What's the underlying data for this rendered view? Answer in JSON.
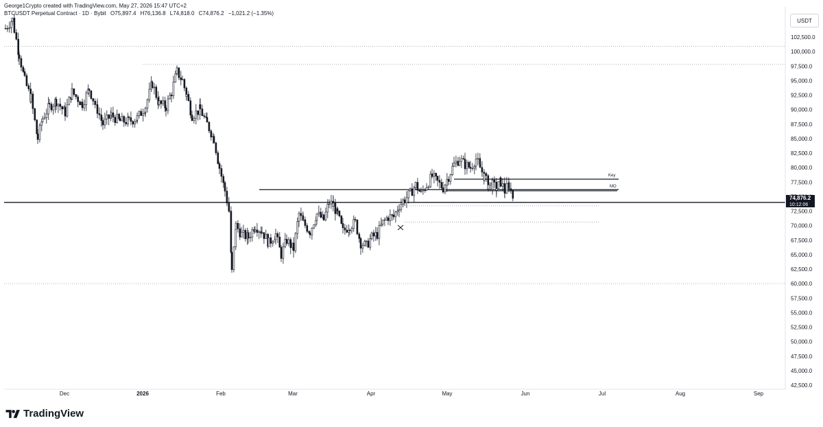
{
  "header": {
    "attribution": "George1Crypto created with TradingView.com, May 27, 2026 15:47 UTC+2",
    "symbol_line": "BTCUSDT Perpetual Contract · 1D · Bybit",
    "open": "O75,897.4",
    "high": "H76,136.8",
    "low": "L74,818.0",
    "close": "C74,876.2",
    "change": "−1,021.2 (−1.35%)"
  },
  "currency": "USDT",
  "footer": {
    "brand": "TradingView"
  },
  "chart_data": {
    "type": "candlestick",
    "y_axis_ticks": [
      "102,500.0",
      "100,000.0",
      "97,500.0",
      "95,000.0",
      "92,500.0",
      "90,000.0",
      "87,500.0",
      "85,000.0",
      "82,500.0",
      "80,000.0",
      "77,500.0",
      "75,000.0",
      "72,500.0",
      "70,000.0",
      "67,500.0",
      "65,000.0",
      "62,500.0",
      "60,000.0",
      "57,500.0",
      "55,000.0",
      "52,500.0",
      "50,000.0",
      "47,500.0",
      "45,000.0",
      "42,500.0"
    ],
    "ylim": [
      42000,
      104500
    ],
    "x_axis_labels": [
      "Dec",
      "2026",
      "Feb",
      "Mar",
      "Apr",
      "May",
      "Jun",
      "Jul",
      "Aug",
      "Sep"
    ],
    "current_price_label": "74,876.2",
    "countdown_label": "10:12:06",
    "current_price": 74876.2,
    "annotations": [
      {
        "text": "Key",
        "price": 78000
      },
      {
        "text": "MO",
        "price": 76000
      }
    ],
    "horizontal_levels": [
      {
        "price": 100900,
        "style": "dotted"
      },
      {
        "price": 97800,
        "style": "dotted"
      },
      {
        "price": 60000,
        "style": "dotted"
      },
      {
        "price": 76000,
        "style": "solid"
      },
      {
        "price": 78000,
        "style": "solid"
      },
      {
        "price": 74000,
        "style": "solid"
      },
      {
        "price": 73400,
        "style": "dotted"
      },
      {
        "price": 70600,
        "style": "dotted"
      }
    ],
    "candles": []
  }
}
